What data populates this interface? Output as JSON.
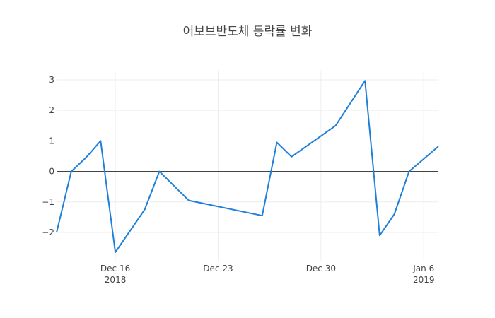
{
  "chart_data": {
    "type": "line",
    "title": "어보브반도체 등락률 변화",
    "xlabel": "",
    "ylabel": "",
    "x": [
      "2018-12-12",
      "2018-12-13",
      "2018-12-14",
      "2018-12-15",
      "2018-12-16",
      "2018-12-18",
      "2018-12-19",
      "2018-12-21",
      "2018-12-26",
      "2018-12-27",
      "2018-12-28",
      "2018-12-31",
      "2019-01-02",
      "2019-01-03",
      "2019-01-04",
      "2019-01-05",
      "2019-01-07"
    ],
    "series": [
      {
        "values": [
          -2.0,
          0.0,
          0.45,
          1.0,
          -2.65,
          -1.25,
          0.0,
          -0.95,
          -1.45,
          0.95,
          0.48,
          1.5,
          2.97,
          -2.1,
          -1.4,
          0.0,
          0.82
        ]
      }
    ],
    "xlim": [
      "2018-12-12",
      "2019-01-07"
    ],
    "ylim": [
      -2.95,
      3.3
    ],
    "x_ticks": [
      {
        "date": "2018-12-16",
        "label": "Dec 16",
        "sublabel": "2018"
      },
      {
        "date": "2018-12-23",
        "label": "Dec 23",
        "sublabel": ""
      },
      {
        "date": "2018-12-30",
        "label": "Dec 30",
        "sublabel": ""
      },
      {
        "date": "2019-01-06",
        "label": "Jan 6",
        "sublabel": "2019"
      }
    ],
    "y_ticks": [
      {
        "value": 3,
        "label": "3"
      },
      {
        "value": 2,
        "label": "2"
      },
      {
        "value": 1,
        "label": "1"
      },
      {
        "value": 0,
        "label": "0"
      },
      {
        "value": -1,
        "label": "−1"
      },
      {
        "value": -2,
        "label": "−2"
      }
    ],
    "grid": true,
    "line_color": "#1f7fd9"
  }
}
